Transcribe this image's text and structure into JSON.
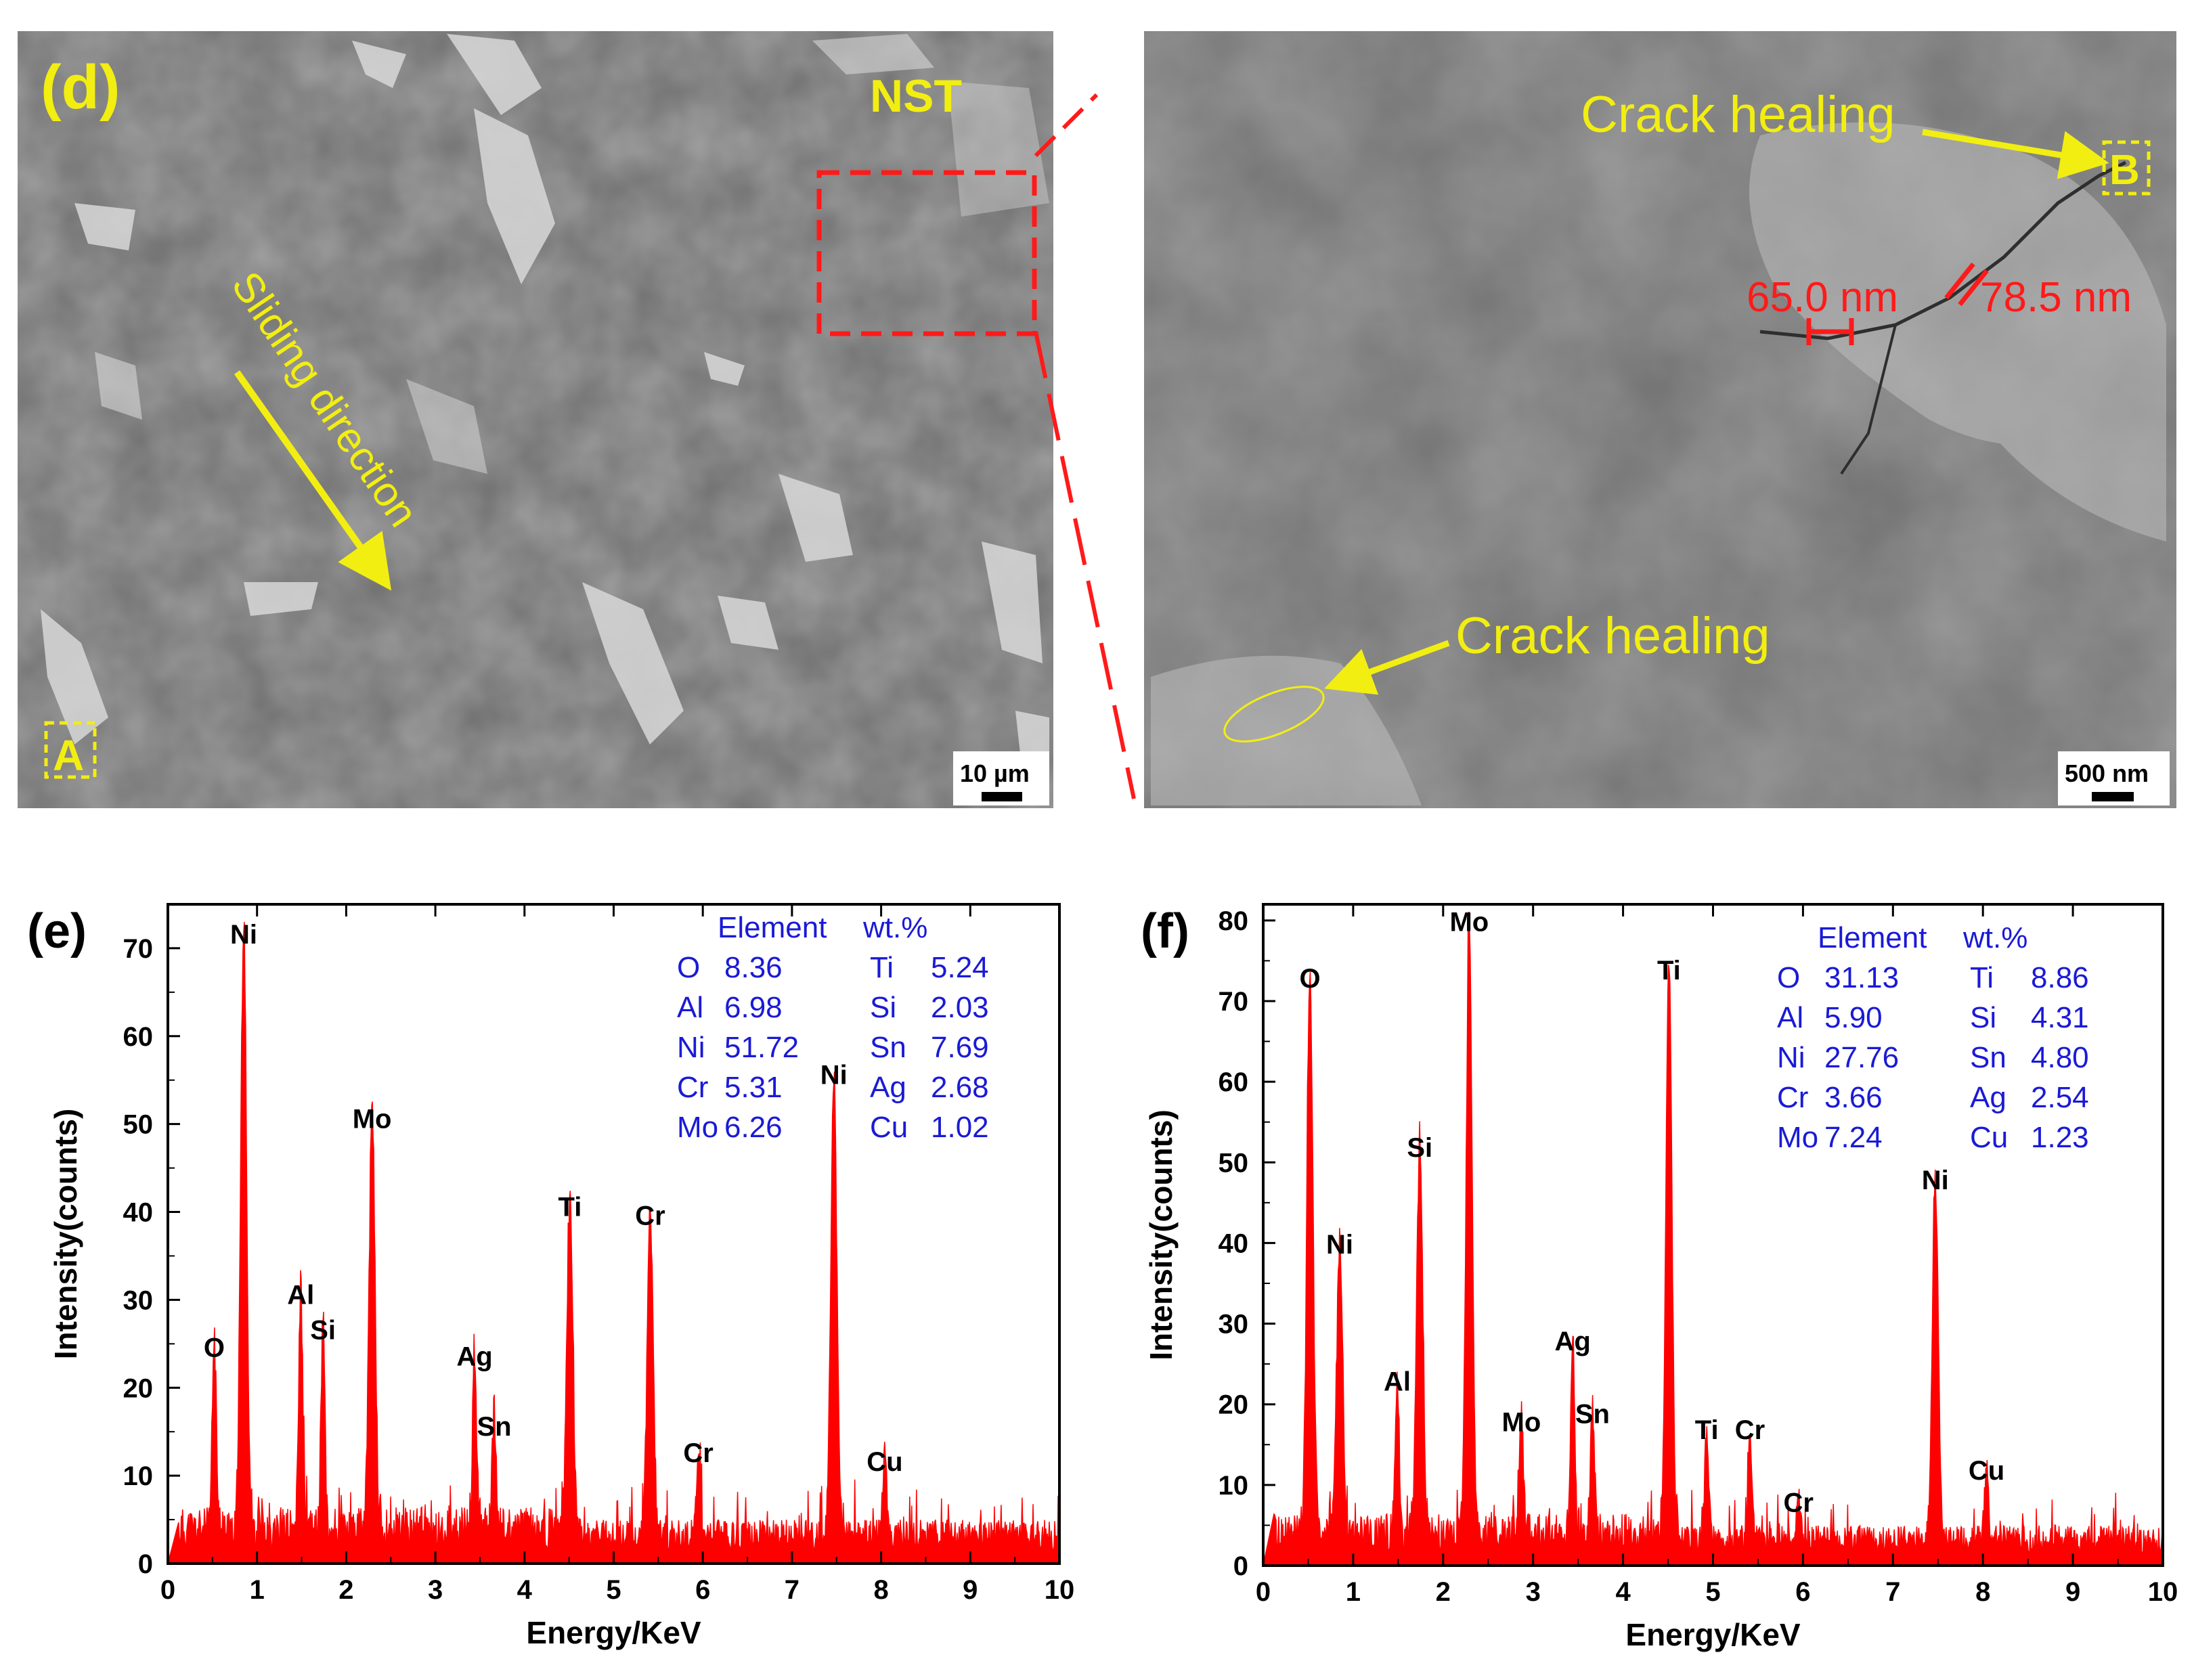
{
  "sem_left": {
    "panel_label": "(d)",
    "region_label": "NST",
    "arrow_label": "Sliding direction",
    "spot_label": "A",
    "scale_bar": "10 µm",
    "colors": {
      "annotation": "#f2ee12",
      "box": "#ff1a1a"
    }
  },
  "sem_right": {
    "crack_label_top": "Crack healing",
    "crack_label_bottom": "Crack healing",
    "spot_label": "B",
    "width_1": "65.0 nm",
    "width_2": "78.5 nm",
    "scale_bar": "500 nm"
  },
  "chart_data": [
    {
      "type": "bar",
      "panel_label": "(e)",
      "xlabel": "Energy/KeV",
      "ylabel": "Intensity(counts)",
      "xlim": [
        0,
        10
      ],
      "ylim": [
        0,
        75
      ],
      "xticks": [
        0,
        1,
        2,
        3,
        4,
        5,
        6,
        7,
        8,
        9,
        10
      ],
      "yticks": [
        0,
        10,
        20,
        30,
        40,
        50,
        60,
        70
      ],
      "color": "#ff0000",
      "peaks": [
        {
          "label": "O",
          "x": 0.52,
          "y": 22
        },
        {
          "label": "Ni",
          "x": 0.85,
          "y": 69
        },
        {
          "label": "Al",
          "x": 1.49,
          "y": 28
        },
        {
          "label": "Si",
          "x": 1.74,
          "y": 24
        },
        {
          "label": "Mo",
          "x": 2.29,
          "y": 48
        },
        {
          "label": "Ag",
          "x": 3.44,
          "y": 21
        },
        {
          "label": "Sn",
          "x": 3.66,
          "y": 13
        },
        {
          "label": "Ti",
          "x": 4.51,
          "y": 38
        },
        {
          "label": "Cr",
          "x": 5.41,
          "y": 37
        },
        {
          "label": "Cr",
          "x": 5.95,
          "y": 10
        },
        {
          "label": "Ni",
          "x": 7.47,
          "y": 53
        },
        {
          "label": "Cu",
          "x": 8.04,
          "y": 9
        }
      ],
      "table": {
        "header": [
          "Element",
          "wt.%"
        ],
        "rows": [
          [
            "O",
            "8.36",
            "Ti",
            "5.24"
          ],
          [
            "Al",
            "6.98",
            "Si",
            "2.03"
          ],
          [
            "Ni",
            "51.72",
            "Sn",
            "7.69"
          ],
          [
            "Cr",
            "5.31",
            "Ag",
            "2.68"
          ],
          [
            "Mo",
            "6.26",
            "Cu",
            "1.02"
          ]
        ]
      }
    },
    {
      "type": "bar",
      "panel_label": "(f)",
      "xlabel": "Energy/KeV",
      "ylabel": "Intensity(counts)",
      "xlim": [
        0,
        10
      ],
      "ylim": [
        0,
        82
      ],
      "xticks": [
        0,
        1,
        2,
        3,
        4,
        5,
        6,
        7,
        8,
        9,
        10
      ],
      "yticks": [
        0,
        10,
        20,
        30,
        40,
        50,
        60,
        70,
        80
      ],
      "color": "#ff0000",
      "peaks": [
        {
          "label": "O",
          "x": 0.52,
          "y": 70
        },
        {
          "label": "Ni",
          "x": 0.85,
          "y": 37
        },
        {
          "label": "Al",
          "x": 1.49,
          "y": 20
        },
        {
          "label": "Si",
          "x": 1.74,
          "y": 49
        },
        {
          "label": "Mo",
          "x": 2.29,
          "y": 77
        },
        {
          "label": "Mo",
          "x": 2.87,
          "y": 15
        },
        {
          "label": "Ag",
          "x": 3.44,
          "y": 25
        },
        {
          "label": "Sn",
          "x": 3.66,
          "y": 16
        },
        {
          "label": "Ti",
          "x": 4.51,
          "y": 71
        },
        {
          "label": "Ti",
          "x": 4.93,
          "y": 14
        },
        {
          "label": "Cr",
          "x": 5.41,
          "y": 14
        },
        {
          "label": "Cr",
          "x": 5.95,
          "y": 5
        },
        {
          "label": "Ni",
          "x": 7.47,
          "y": 45
        },
        {
          "label": "Cu",
          "x": 8.04,
          "y": 9
        }
      ],
      "table": {
        "header": [
          "Element",
          "wt.%"
        ],
        "rows": [
          [
            "O",
            "31.13",
            "Ti",
            "8.86"
          ],
          [
            "Al",
            "5.90",
            "Si",
            "4.31"
          ],
          [
            "Ni",
            "27.76",
            "Sn",
            "4.80"
          ],
          [
            "Cr",
            "3.66",
            "Ag",
            "2.54"
          ],
          [
            "Mo",
            "7.24",
            "Cu",
            "1.23"
          ]
        ]
      }
    }
  ]
}
